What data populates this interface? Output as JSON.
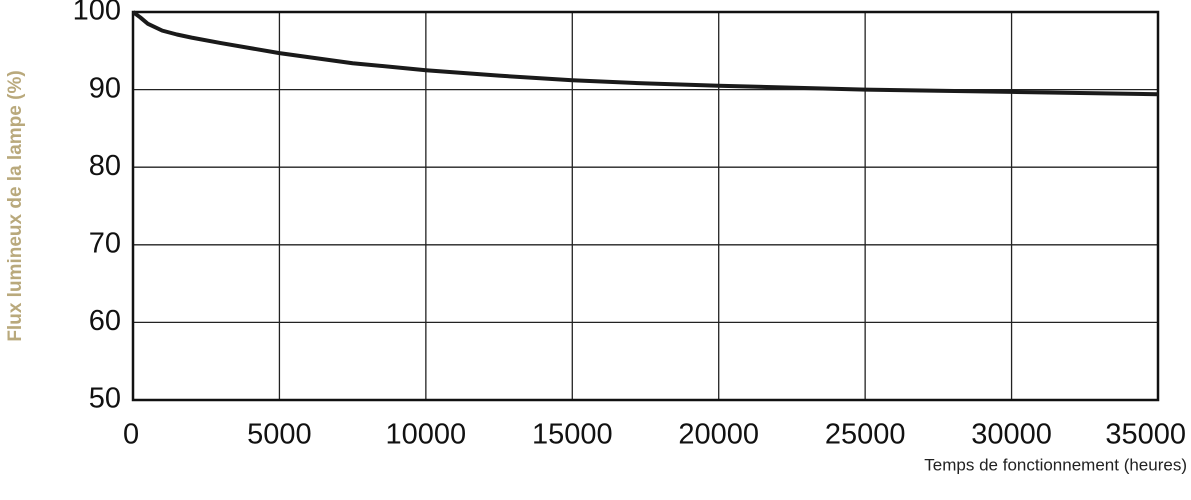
{
  "chart_data": {
    "type": "line",
    "x_label": "Temps de fonctionnement (heures)",
    "y_label": "Flux lumineux de la lampe (%)",
    "x": [
      0,
      250,
      500,
      1000,
      1500,
      2000,
      3000,
      5000,
      7500,
      10000,
      12500,
      15000,
      17500,
      20000,
      25000,
      30000,
      35000
    ],
    "series": [
      {
        "name": "Flux",
        "color": "#1a1a1a",
        "values": [
          100,
          99.3,
          98.5,
          97.6,
          97.1,
          96.7,
          96.0,
          94.7,
          93.4,
          92.5,
          91.8,
          91.2,
          90.8,
          90.5,
          90.0,
          89.7,
          89.4
        ]
      }
    ],
    "xlim": [
      0,
      35000
    ],
    "xticks": [
      0,
      5000,
      10000,
      15000,
      20000,
      25000,
      30000,
      35000
    ],
    "ylim": [
      50,
      100
    ],
    "yticks": [
      50,
      60,
      70,
      80,
      90,
      100
    ],
    "grid": true
  }
}
